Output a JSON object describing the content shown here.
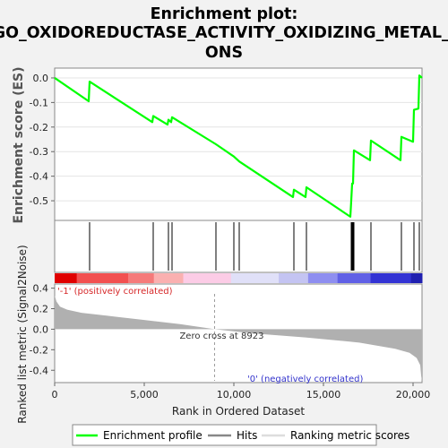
{
  "title_lines": [
    "Enrichment plot:",
    "GO_OXIDOREDUCTASE_ACTIVITY_OXIDIZING_METAL_I",
    "ONS"
  ],
  "colors": {
    "curve": "#00ff00",
    "hits": "#000000",
    "metric_fill": "#b0b0b0",
    "pos_label": "#d62728",
    "neg_label": "#3333cc",
    "zero_line": "#999999"
  },
  "chart_data": [
    {
      "name": "enrichment",
      "type": "line",
      "ylabel": "Enrichment score (ES)",
      "ylim": [
        -0.58,
        0.04
      ],
      "yticks": [
        0.0,
        -0.1,
        -0.2,
        -0.3,
        -0.4,
        -0.5
      ],
      "ytick_labels": [
        "0.0",
        "-0.1",
        "-0.2",
        "-0.3",
        "-0.4",
        "-0.5"
      ],
      "xlim": [
        0,
        20500
      ],
      "series": [
        {
          "name": "Enrichment profile",
          "x": [
            0,
            1900,
            1950,
            5450,
            5500,
            6300,
            6350,
            6500,
            6550,
            9000,
            10000,
            10300,
            13300,
            13350,
            14000,
            14050,
            16500,
            16550,
            16600,
            16650,
            16700,
            17600,
            17650,
            19300,
            19350,
            20000,
            20050,
            20300,
            20350,
            20500
          ],
          "y": [
            0.0,
            -0.095,
            -0.015,
            -0.18,
            -0.155,
            -0.19,
            -0.17,
            -0.18,
            -0.16,
            -0.27,
            -0.32,
            -0.34,
            -0.485,
            -0.455,
            -0.485,
            -0.445,
            -0.565,
            -0.5,
            -0.43,
            -0.43,
            -0.295,
            -0.335,
            -0.255,
            -0.335,
            -0.24,
            -0.26,
            -0.13,
            -0.125,
            0.01,
            0.0
          ]
        }
      ]
    },
    {
      "name": "hits",
      "type": "scatter",
      "xlim": [
        0,
        20500
      ],
      "x": [
        1950,
        5500,
        6350,
        6550,
        9000,
        10000,
        10300,
        13350,
        14050,
        16550,
        16600,
        16650,
        16700,
        17650,
        19350,
        20050,
        20350
      ]
    },
    {
      "name": "ranked_metric",
      "type": "area",
      "ylabel": "Ranked list metric (Signal2Noise)",
      "xlabel": "Rank in Ordered Dataset",
      "xlim": [
        0,
        20500
      ],
      "ylim": [
        -0.52,
        0.44
      ],
      "yticks": [
        0.4,
        0.2,
        0.0,
        -0.2,
        -0.4
      ],
      "ytick_labels": [
        "0.4",
        "0.2",
        "0.0",
        "-0.2",
        "-0.4"
      ],
      "xticks": [
        0,
        5000,
        10000,
        15000,
        20000
      ],
      "xtick_labels": [
        "0",
        "5,000",
        "10,000",
        "15,000",
        "20,000"
      ],
      "x": [
        0,
        100,
        300,
        700,
        1500,
        3000,
        5000,
        7000,
        8923,
        11000,
        14000,
        17000,
        19000,
        19800,
        20200,
        20400,
        20450,
        20500
      ],
      "y": [
        0.33,
        0.27,
        0.22,
        0.19,
        0.16,
        0.13,
        0.09,
        0.05,
        0.0,
        -0.04,
        -0.08,
        -0.13,
        -0.19,
        -0.23,
        -0.28,
        -0.35,
        -0.45,
        -0.51
      ],
      "zero_cross_x": 8923,
      "zero_cross_label": "Zero cross at 8923",
      "pos_label": "'-1' (positively correlated)",
      "neg_label": "'0' (negatively correlated)"
    }
  ],
  "legend": {
    "items": [
      "Enrichment profile",
      "Hits",
      "Ranking metric scores"
    ]
  }
}
